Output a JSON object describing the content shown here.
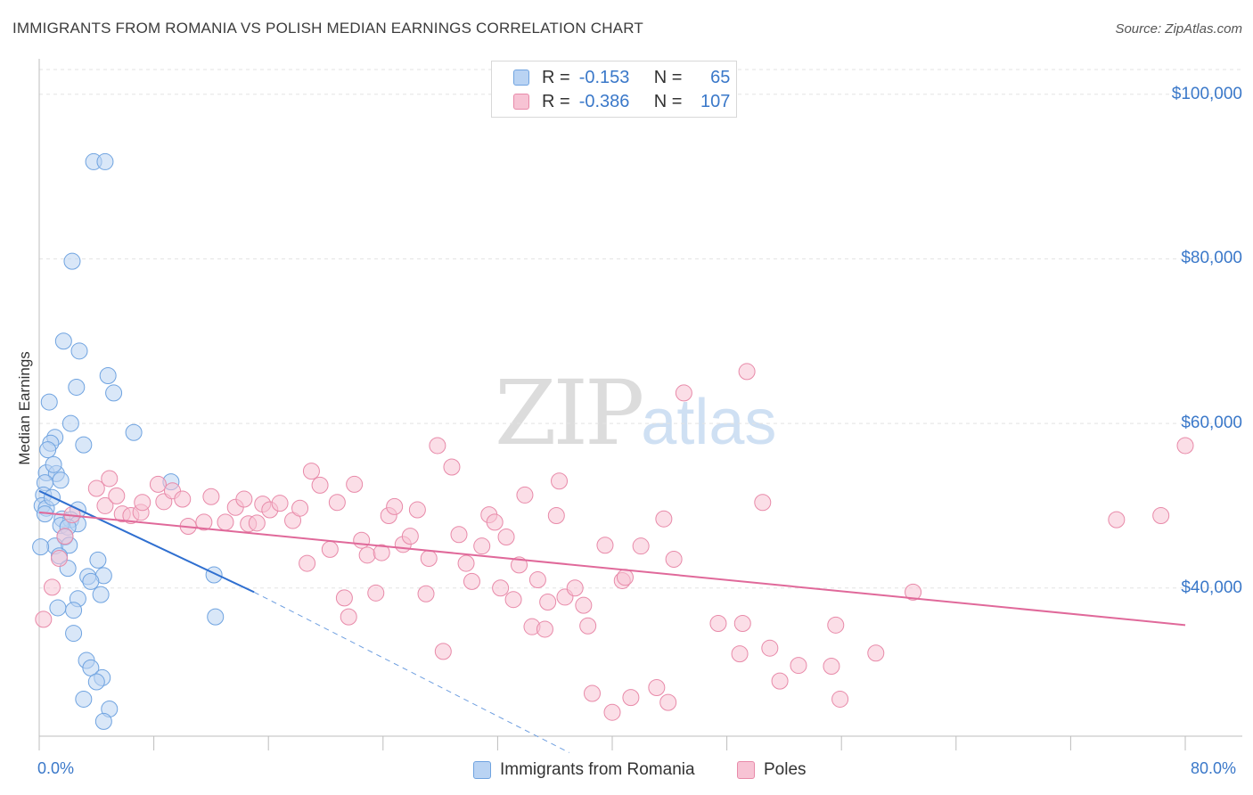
{
  "header": {
    "title": "IMMIGRANTS FROM ROMANIA VS POLISH MEDIAN EARNINGS CORRELATION CHART",
    "source": "Source: ZipAtlas.com"
  },
  "watermark": {
    "zip": "ZIP",
    "atlas": "atlas"
  },
  "legend": {
    "rows": [
      {
        "r_label": "R =",
        "r_value": "-0.153",
        "n_label": "N =",
        "n_value": "65",
        "color": "#6fa3e0",
        "fill": "#b9d3f3"
      },
      {
        "r_label": "R =",
        "r_value": "-0.386",
        "n_label": "N =",
        "n_value": "107",
        "color": "#e88aa9",
        "fill": "#f7c3d4"
      }
    ]
  },
  "bottom_legend": {
    "series1": "Immigrants from Romania",
    "series2": "Poles"
  },
  "chart_data": {
    "type": "scatter",
    "xlabel": "",
    "ylabel": "Median Earnings",
    "x_tick_labels": [
      "0.0%",
      "80.0%"
    ],
    "y_tick_labels": [
      "$40,000",
      "$60,000",
      "$80,000",
      "$100,000"
    ],
    "xlim": [
      0,
      80
    ],
    "ylim": [
      22000,
      103000
    ],
    "y_ticks": [
      40000,
      60000,
      80000,
      100000
    ],
    "grid": "horizontal dashed",
    "legend_position": "top-center",
    "series": [
      {
        "name": "Immigrants from Romania",
        "color": "#3a78c9",
        "fill": "#b9d3f3",
        "trend": {
          "x": [
            0,
            15
          ],
          "y": [
            51800,
            39500
          ],
          "dashed_extension_to": [
            37,
            20000
          ]
        },
        "points": [
          [
            3.8,
            91800
          ],
          [
            4.6,
            91800
          ],
          [
            2.3,
            79700
          ],
          [
            1.7,
            70000
          ],
          [
            2.8,
            68800
          ],
          [
            4.8,
            65800
          ],
          [
            5.2,
            63700
          ],
          [
            2.6,
            64400
          ],
          [
            0.7,
            62600
          ],
          [
            2.2,
            60000
          ],
          [
            6.6,
            58900
          ],
          [
            1.1,
            58300
          ],
          [
            0.8,
            57600
          ],
          [
            3.1,
            57400
          ],
          [
            0.6,
            56800
          ],
          [
            0.5,
            54000
          ],
          [
            1.2,
            53900
          ],
          [
            1.5,
            53100
          ],
          [
            0.4,
            52800
          ],
          [
            9.2,
            52900
          ],
          [
            0.3,
            51300
          ],
          [
            0.2,
            50000
          ],
          [
            0.5,
            49700
          ],
          [
            2.7,
            49500
          ],
          [
            0.4,
            49000
          ],
          [
            1.6,
            48400
          ],
          [
            2.2,
            48300
          ],
          [
            1.5,
            47600
          ],
          [
            2.7,
            47800
          ],
          [
            2.0,
            47400
          ],
          [
            1.8,
            46200
          ],
          [
            1.1,
            45100
          ],
          [
            2.1,
            45200
          ],
          [
            0.1,
            45000
          ],
          [
            1.4,
            43900
          ],
          [
            4.1,
            43400
          ],
          [
            2.0,
            42400
          ],
          [
            3.4,
            41400
          ],
          [
            4.5,
            41500
          ],
          [
            12.2,
            41600
          ],
          [
            3.6,
            40800
          ],
          [
            4.3,
            39200
          ],
          [
            2.7,
            38700
          ],
          [
            1.3,
            37600
          ],
          [
            2.4,
            37300
          ],
          [
            12.3,
            36500
          ],
          [
            2.4,
            34500
          ],
          [
            3.3,
            31200
          ],
          [
            3.6,
            30300
          ],
          [
            4.4,
            29100
          ],
          [
            4.0,
            28600
          ],
          [
            3.1,
            26500
          ],
          [
            4.9,
            25300
          ],
          [
            4.5,
            23800
          ],
          [
            0.9,
            51000
          ],
          [
            1.0,
            55000
          ]
        ]
      },
      {
        "name": "Poles",
        "color": "#e0699a",
        "fill": "#f7c3d4",
        "trend": {
          "x": [
            0,
            80
          ],
          "y": [
            49200,
            35500
          ]
        },
        "points": [
          [
            0.3,
            36200
          ],
          [
            0.9,
            40100
          ],
          [
            1.4,
            43600
          ],
          [
            1.8,
            46300
          ],
          [
            2.3,
            48900
          ],
          [
            4.0,
            52100
          ],
          [
            4.6,
            50000
          ],
          [
            4.9,
            53300
          ],
          [
            5.4,
            51200
          ],
          [
            5.8,
            49000
          ],
          [
            6.4,
            48800
          ],
          [
            7.1,
            49200
          ],
          [
            7.2,
            50400
          ],
          [
            8.3,
            52600
          ],
          [
            8.7,
            50500
          ],
          [
            9.3,
            51800
          ],
          [
            10.0,
            50800
          ],
          [
            10.4,
            47500
          ],
          [
            11.5,
            48000
          ],
          [
            12.0,
            51100
          ],
          [
            13.0,
            48000
          ],
          [
            13.7,
            49800
          ],
          [
            14.3,
            50800
          ],
          [
            14.6,
            47800
          ],
          [
            15.2,
            47900
          ],
          [
            15.6,
            50200
          ],
          [
            16.1,
            49500
          ],
          [
            16.8,
            50300
          ],
          [
            17.7,
            48200
          ],
          [
            18.2,
            49700
          ],
          [
            18.7,
            43000
          ],
          [
            19.0,
            54200
          ],
          [
            19.6,
            52500
          ],
          [
            20.3,
            44700
          ],
          [
            20.8,
            50400
          ],
          [
            21.3,
            38800
          ],
          [
            21.6,
            36500
          ],
          [
            22.0,
            52600
          ],
          [
            22.5,
            45800
          ],
          [
            22.9,
            44000
          ],
          [
            23.5,
            39400
          ],
          [
            23.9,
            44300
          ],
          [
            24.4,
            48800
          ],
          [
            24.8,
            49900
          ],
          [
            25.4,
            45300
          ],
          [
            25.9,
            46300
          ],
          [
            26.4,
            49500
          ],
          [
            27.0,
            39300
          ],
          [
            27.2,
            43600
          ],
          [
            27.8,
            57300
          ],
          [
            28.2,
            32300
          ],
          [
            28.8,
            54700
          ],
          [
            29.3,
            46500
          ],
          [
            29.8,
            43000
          ],
          [
            30.2,
            40800
          ],
          [
            30.9,
            45100
          ],
          [
            31.4,
            48900
          ],
          [
            31.8,
            48000
          ],
          [
            32.2,
            40000
          ],
          [
            32.6,
            46200
          ],
          [
            33.1,
            38600
          ],
          [
            33.5,
            42800
          ],
          [
            33.9,
            51300
          ],
          [
            34.4,
            35300
          ],
          [
            34.8,
            41000
          ],
          [
            35.3,
            35000
          ],
          [
            35.5,
            38300
          ],
          [
            36.1,
            48800
          ],
          [
            36.3,
            53000
          ],
          [
            36.7,
            38900
          ],
          [
            37.4,
            40000
          ],
          [
            38.0,
            37900
          ],
          [
            38.3,
            35400
          ],
          [
            38.6,
            27200
          ],
          [
            39.5,
            45200
          ],
          [
            40.0,
            24900
          ],
          [
            40.7,
            40900
          ],
          [
            40.9,
            41300
          ],
          [
            41.3,
            26700
          ],
          [
            42.0,
            45100
          ],
          [
            43.1,
            27900
          ],
          [
            43.6,
            48400
          ],
          [
            43.9,
            26100
          ],
          [
            44.3,
            43500
          ],
          [
            45.0,
            63700
          ],
          [
            47.4,
            35700
          ],
          [
            48.9,
            32000
          ],
          [
            49.1,
            35700
          ],
          [
            49.4,
            66300
          ],
          [
            50.5,
            50400
          ],
          [
            51.0,
            32700
          ],
          [
            51.7,
            28700
          ],
          [
            53.0,
            30600
          ],
          [
            55.3,
            30500
          ],
          [
            55.6,
            35500
          ],
          [
            55.9,
            26500
          ],
          [
            58.4,
            32100
          ],
          [
            61.0,
            39500
          ],
          [
            75.2,
            48300
          ],
          [
            78.3,
            48800
          ],
          [
            80.0,
            57300
          ]
        ]
      }
    ]
  }
}
